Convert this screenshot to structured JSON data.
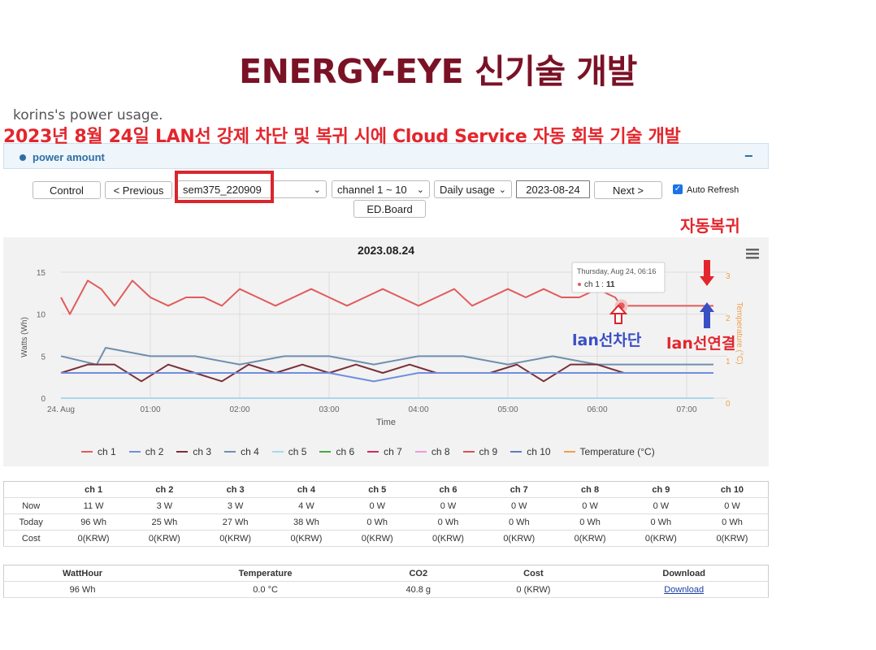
{
  "title": "ENERGY-EYE 신기술 개발",
  "subtitle": "korins's power usage.",
  "overlay_text": "2023년 8월 24일 LAN선 강제 차단 및 복귀 시에 Cloud Service 자동 회복 기술 개발",
  "panel": {
    "title": "power amount",
    "collapse": "−"
  },
  "controls": {
    "control": "Control",
    "previous": "< Previous",
    "device": "sem375_220909",
    "channel": "channel 1 ~ 10",
    "mode": "Daily usage",
    "date": "2023-08-24",
    "next": "Next >",
    "auto_refresh": "Auto Refresh",
    "edboard": "ED.Board"
  },
  "annotations": {
    "auto_recover": "자동복귀",
    "lan_cut": "lan선차단",
    "lan_connect": "lan선연결"
  },
  "chart_data": {
    "type": "line",
    "title": "2023.08.24",
    "xlabel": "Time",
    "ylabel": "Watts (Wh)",
    "y2label": "Temperature (°C)",
    "xticks": [
      "24. Aug",
      "01:00",
      "02:00",
      "03:00",
      "04:00",
      "05:00",
      "06:00",
      "07:00"
    ],
    "ylim": [
      0,
      15
    ],
    "yticks": [
      0,
      5,
      10,
      15
    ],
    "y2ticks": [
      0,
      1,
      2,
      3
    ],
    "tooltip": {
      "date": "Thursday, Aug 24, 06:16",
      "series": "ch 1",
      "value": "11"
    },
    "series": [
      {
        "name": "ch 1",
        "color": "#e15b5b",
        "x": [
          0,
          0.1,
          0.3,
          0.45,
          0.6,
          0.8,
          1,
          1.2,
          1.4,
          1.6,
          1.8,
          2,
          2.2,
          2.4,
          2.6,
          2.8,
          3,
          3.2,
          3.4,
          3.6,
          3.8,
          4,
          4.2,
          4.4,
          4.6,
          4.8,
          5,
          5.2,
          5.4,
          5.6,
          5.8,
          6,
          6.2,
          6.27,
          7.3
        ],
        "y": [
          12,
          10,
          14,
          13,
          11,
          14,
          12,
          11,
          12,
          12,
          11,
          13,
          12,
          11,
          12,
          13,
          12,
          11,
          12,
          13,
          12,
          11,
          12,
          13,
          11,
          12,
          13,
          12,
          13,
          12,
          12,
          13,
          12,
          11,
          11
        ]
      },
      {
        "name": "ch 2",
        "color": "#6f8ee0",
        "x": [
          0,
          0.5,
          1,
          1.5,
          2,
          2.5,
          3,
          3.5,
          4,
          4.5,
          5,
          5.5,
          6,
          6.5,
          7,
          7.3
        ],
        "y": [
          3,
          3,
          3,
          3,
          3,
          3,
          3,
          2,
          3,
          3,
          3,
          3,
          3,
          3,
          3,
          3
        ]
      },
      {
        "name": "ch 3",
        "color": "#7a2f38",
        "x": [
          0,
          0.3,
          0.6,
          0.9,
          1.2,
          1.5,
          1.8,
          2.1,
          2.4,
          2.7,
          3,
          3.3,
          3.6,
          3.9,
          4.2,
          4.5,
          4.8,
          5.1,
          5.4,
          5.7,
          6,
          6.3,
          6.6,
          7,
          7.3
        ],
        "y": [
          3,
          4,
          4,
          2,
          4,
          3,
          2,
          4,
          3,
          4,
          3,
          4,
          3,
          4,
          3,
          3,
          3,
          4,
          2,
          4,
          4,
          3,
          3,
          3,
          3
        ]
      },
      {
        "name": "ch 4",
        "color": "#6f8fb0",
        "x": [
          0,
          0.4,
          0.5,
          1,
          1.5,
          2,
          2.5,
          3,
          3.5,
          4,
          4.5,
          5,
          5.5,
          6,
          6.5,
          7,
          7.3
        ],
        "y": [
          5,
          4,
          6,
          5,
          5,
          4,
          5,
          5,
          4,
          5,
          5,
          4,
          5,
          4,
          4,
          4,
          4
        ]
      },
      {
        "name": "ch 5",
        "color": "#a9d7ef",
        "x": [
          0,
          7.3
        ],
        "y": [
          0,
          0
        ]
      },
      {
        "name": "ch 6",
        "color": "#45a845",
        "x": [
          0,
          7.3
        ],
        "y": [
          0,
          0
        ]
      },
      {
        "name": "ch 7",
        "color": "#cf2a64",
        "x": [
          0,
          7.3
        ],
        "y": [
          0,
          0
        ]
      },
      {
        "name": "ch 8",
        "color": "#ee99e0",
        "x": [
          0,
          7.3
        ],
        "y": [
          0,
          0
        ]
      },
      {
        "name": "ch 9",
        "color": "#d9534f",
        "x": [
          0,
          7.3
        ],
        "y": [
          0,
          0
        ]
      },
      {
        "name": "ch 10",
        "color": "#5b7fc0",
        "x": [
          0,
          7.3
        ],
        "y": [
          0,
          0
        ]
      },
      {
        "name": "Temperature (°C)",
        "color": "#f0a04b",
        "x": [
          0,
          7.3
        ],
        "y": [
          0,
          0
        ]
      }
    ]
  },
  "table1": {
    "headers": [
      "",
      "ch 1",
      "ch 2",
      "ch 3",
      "ch 4",
      "ch 5",
      "ch 6",
      "ch 7",
      "ch 8",
      "ch 9",
      "ch 10"
    ],
    "rows": [
      [
        "Now",
        "11 W",
        "3 W",
        "3 W",
        "4 W",
        "0 W",
        "0 W",
        "0 W",
        "0 W",
        "0 W",
        "0 W"
      ],
      [
        "Today",
        "96 Wh",
        "25 Wh",
        "27 Wh",
        "38 Wh",
        "0 Wh",
        "0 Wh",
        "0 Wh",
        "0 Wh",
        "0 Wh",
        "0 Wh"
      ],
      [
        "Cost",
        "0(KRW)",
        "0(KRW)",
        "0(KRW)",
        "0(KRW)",
        "0(KRW)",
        "0(KRW)",
        "0(KRW)",
        "0(KRW)",
        "0(KRW)",
        "0(KRW)"
      ]
    ]
  },
  "table2": {
    "headers": [
      "WattHour",
      "Temperature",
      "CO2",
      "Cost",
      "Download"
    ],
    "row": [
      "96 Wh",
      "0.0 °C",
      "40.8 g",
      "0 (KRW)",
      "Download"
    ]
  }
}
